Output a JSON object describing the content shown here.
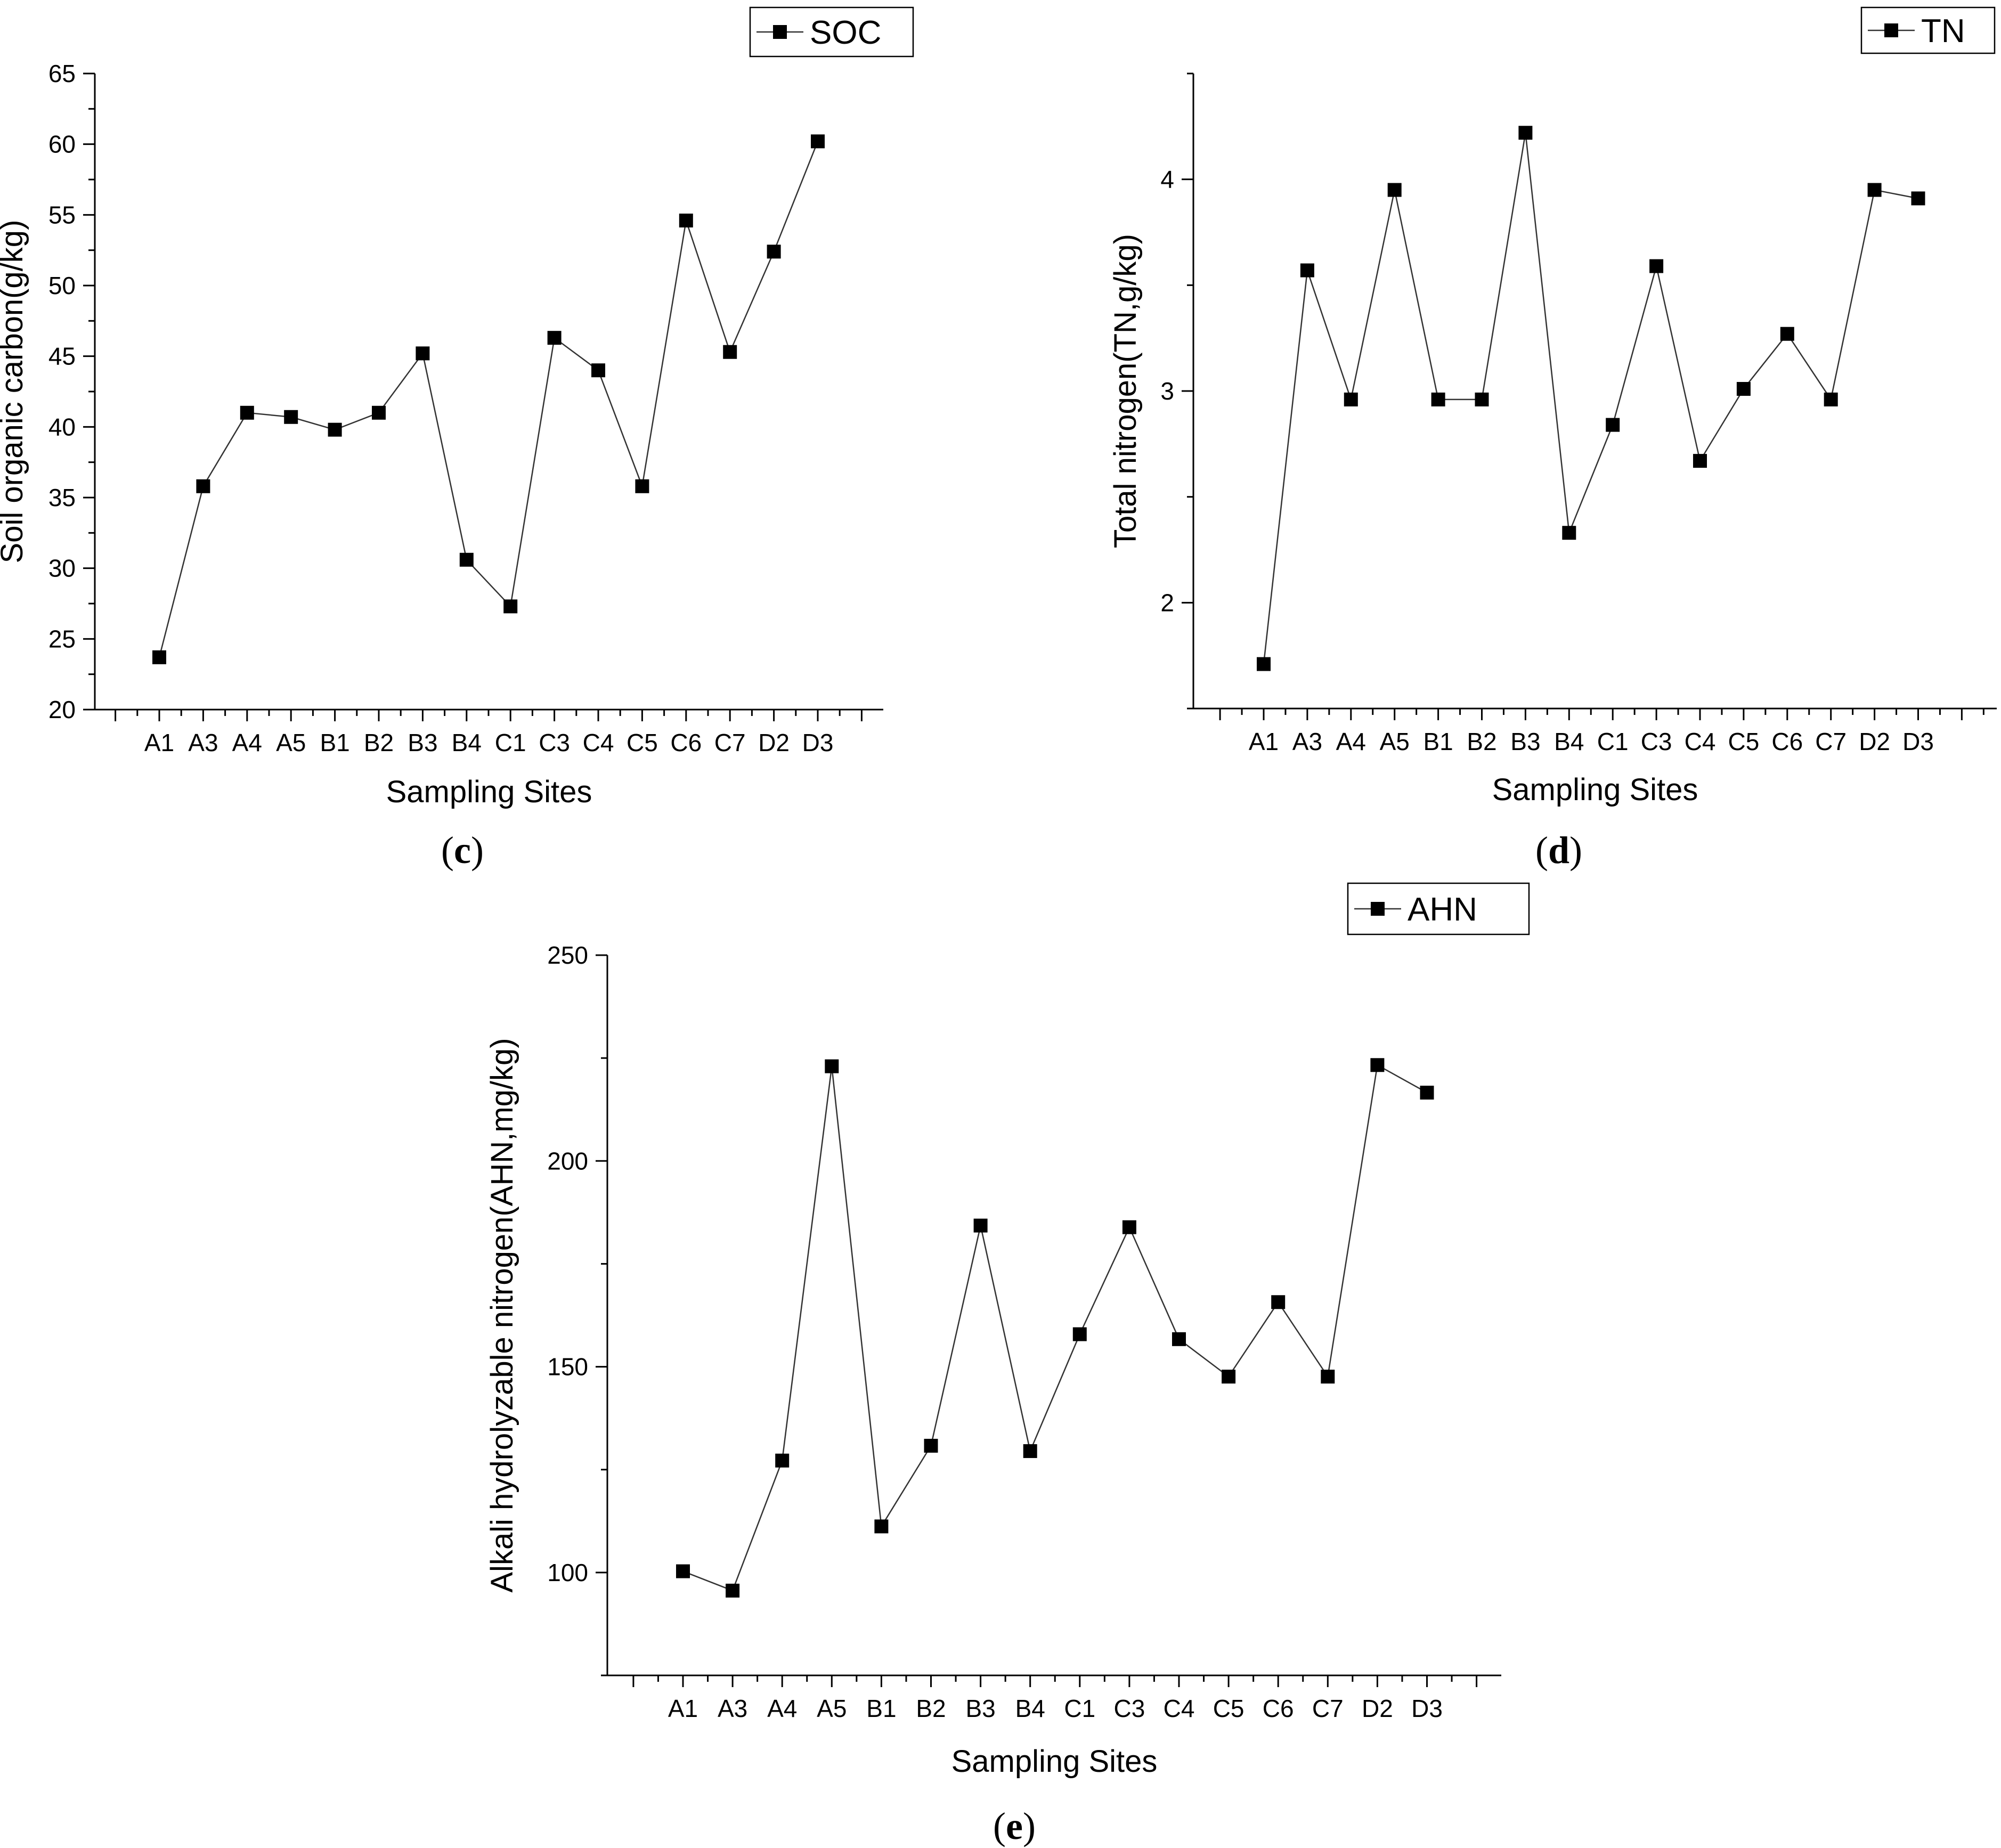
{
  "chart_data": [
    {
      "type": "line",
      "panel_label": "(c)",
      "title": "",
      "xlabel": "Sampling Sites",
      "ylabel": "Soil organic carbon(g/kg)",
      "legend": "SOC",
      "legend_position": "top-right",
      "categories": [
        "A1",
        "A3",
        "A4",
        "A5",
        "B1",
        "B2",
        "B3",
        "B4",
        "C1",
        "C3",
        "C4",
        "C5",
        "C6",
        "C7",
        "D2",
        "D3"
      ],
      "values": [
        23.7,
        35.8,
        41.0,
        40.7,
        39.8,
        41.0,
        45.2,
        30.6,
        27.3,
        46.3,
        44.0,
        35.8,
        54.6,
        45.3,
        52.4,
        60.2
      ],
      "ylim": [
        20,
        65
      ],
      "yticks": [
        20,
        25,
        30,
        35,
        40,
        45,
        50,
        55,
        60,
        65
      ],
      "grid": false
    },
    {
      "type": "line",
      "panel_label": "(d)",
      "title": "",
      "xlabel": "Sampling Sites",
      "ylabel": "Total nitrogen(TN,g/kg)",
      "legend": "TN",
      "legend_position": "top-right",
      "categories": [
        "A1",
        "A3",
        "A4",
        "A5",
        "B1",
        "B2",
        "B3",
        "B4",
        "C1",
        "C3",
        "C4",
        "C5",
        "C6",
        "C7",
        "D2",
        "D3"
      ],
      "values": [
        1.71,
        3.57,
        2.96,
        3.95,
        2.96,
        2.96,
        4.22,
        2.33,
        2.84,
        3.59,
        2.67,
        3.01,
        3.27,
        2.96,
        3.95,
        3.91
      ],
      "ylim": [
        1.5,
        4.5
      ],
      "yticks": [
        2,
        3,
        4
      ],
      "grid": false
    },
    {
      "type": "line",
      "panel_label": "(e)",
      "title": "",
      "xlabel": "Sampling Sites",
      "ylabel": "Alkali hydrolyzable nitrogen(AHN,mg/kg)",
      "legend": "AHN",
      "legend_position": "top-right",
      "categories": [
        "A1",
        "A3",
        "A4",
        "A5",
        "B1",
        "B2",
        "B3",
        "B4",
        "C1",
        "C3",
        "C4",
        "C5",
        "C6",
        "C7",
        "D2",
        "D3"
      ],
      "values": [
        100.3,
        95.6,
        127.2,
        223.0,
        111.2,
        130.8,
        184.3,
        129.5,
        157.9,
        183.9,
        156.7,
        147.6,
        165.7,
        147.6,
        223.3,
        216.6
      ],
      "ylim": [
        75,
        250
      ],
      "yticks": [
        100,
        150,
        200,
        250
      ],
      "grid": false
    }
  ]
}
